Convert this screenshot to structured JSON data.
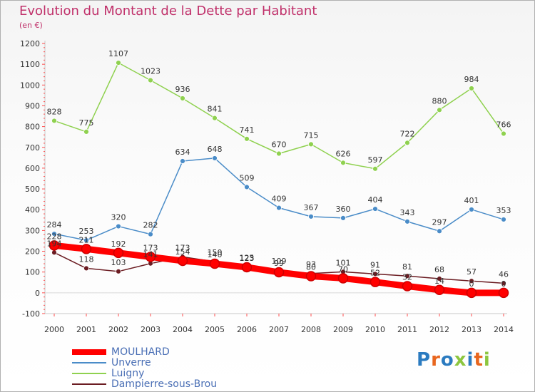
{
  "title": "Evolution du Montant de la Dette par Habitant",
  "unit": "(en €)",
  "logo": {
    "text": "Proxiti",
    "letter_colors": [
      "#2b7bc0",
      "#e8661e",
      "#2b7bc0",
      "#8cc63f",
      "#2b7bc0",
      "#e8661e",
      "#8cc63f"
    ]
  },
  "chart_data": {
    "type": "line",
    "title": "Evolution du Montant de la Dette par Habitant",
    "subtitle": "(en €)",
    "xlabel": "",
    "ylabel": "",
    "x": [
      2000,
      2001,
      2002,
      2003,
      2004,
      2005,
      2006,
      2007,
      2008,
      2009,
      2010,
      2011,
      2012,
      2013,
      2014
    ],
    "ylim": [
      -100,
      1200
    ],
    "yticks": [
      -100,
      0,
      100,
      200,
      300,
      400,
      500,
      600,
      700,
      800,
      900,
      1000,
      1100,
      1200
    ],
    "grid": false,
    "legend_position": "bottom-left",
    "series": [
      {
        "name": "Luigny",
        "color": "#8fd14f",
        "values": [
          828,
          775,
          1107,
          1023,
          936,
          841,
          741,
          670,
          715,
          626,
          597,
          722,
          880,
          984,
          766
        ]
      },
      {
        "name": "Unverre",
        "color": "#4a8cc8",
        "values": [
          284,
          253,
          320,
          282,
          634,
          648,
          509,
          409,
          367,
          360,
          404,
          343,
          297,
          401,
          353
        ]
      },
      {
        "name": "Dampierre-sous-Brou",
        "color": "#6b1c22",
        "values": [
          194,
          118,
          103,
          141,
          173,
          150,
          125,
          109,
          93,
          101,
          91,
          81,
          68,
          57,
          46
        ]
      },
      {
        "name": "MOULHARD",
        "color": "#ff0000",
        "values": [
          228,
          211,
          192,
          173,
          154,
          140,
          123,
          99,
          80,
          70,
          52,
          32,
          14,
          0,
          0
        ]
      }
    ],
    "legend_order": [
      "MOULHARD",
      "Unverre",
      "Luigny",
      "Dampierre-sous-Brou"
    ]
  }
}
